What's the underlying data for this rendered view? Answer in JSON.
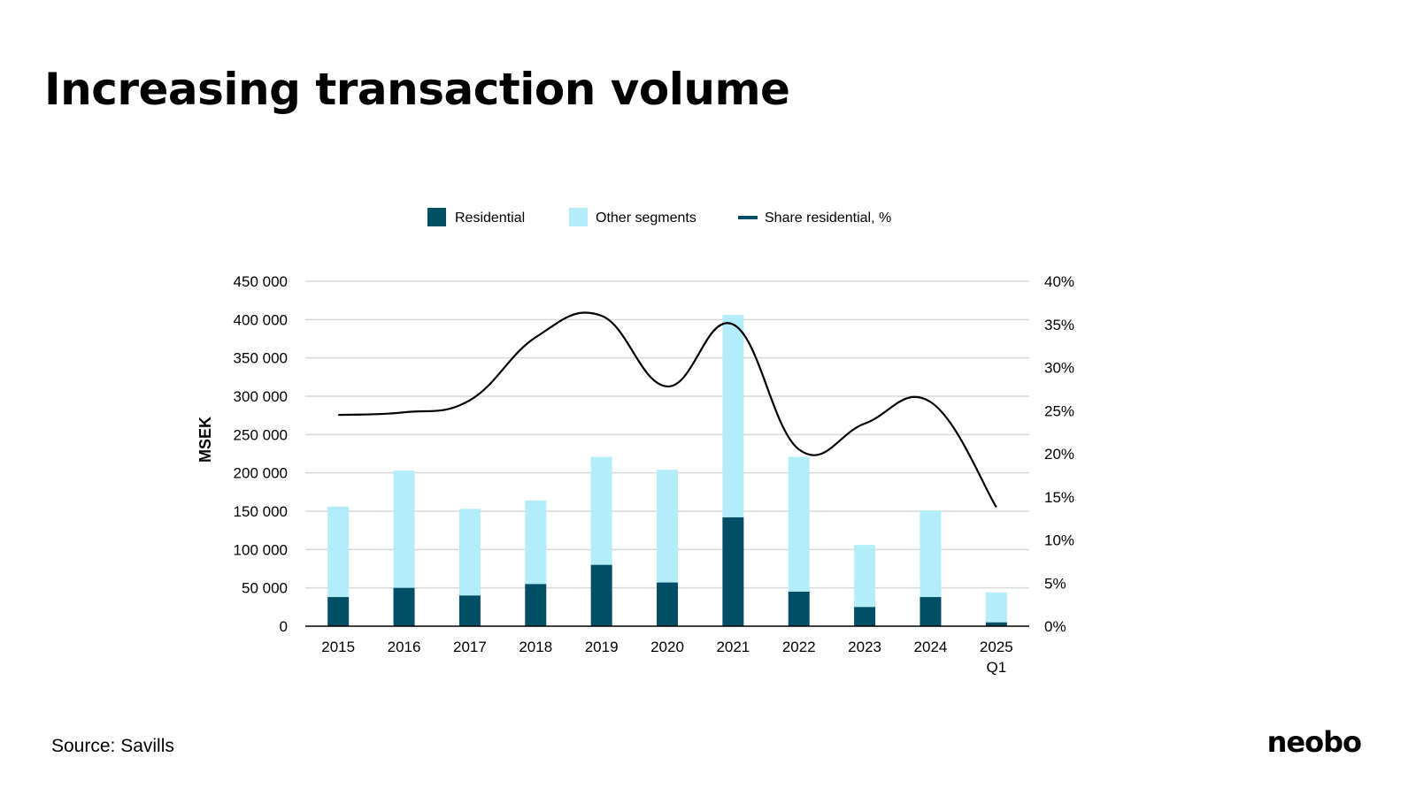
{
  "title": "Increasing transaction volume",
  "source": "Source: Savills",
  "logo": "neobo",
  "colors": {
    "residential": "#004F66",
    "other": "#B3EDFA",
    "share_line": "#000000",
    "legend_line": "#004F66",
    "grid": "#D9D9D9"
  },
  "chart_data": {
    "type": "bar",
    "stacked": true,
    "categories": [
      "2015",
      "2016",
      "2017",
      "2018",
      "2019",
      "2020",
      "2021",
      "2022",
      "2023",
      "2024",
      "2025 Q1"
    ],
    "series": [
      {
        "name": "Residential",
        "type": "bar",
        "axis": "left",
        "values": [
          38000,
          50000,
          40000,
          55000,
          80000,
          57000,
          142000,
          45000,
          25000,
          38000,
          5000
        ]
      },
      {
        "name": "Other segments",
        "type": "bar",
        "axis": "left",
        "values": [
          118000,
          153000,
          113000,
          109000,
          141000,
          147000,
          264000,
          176000,
          81000,
          113000,
          39000
        ]
      },
      {
        "name": "Share residential, %",
        "type": "line",
        "axis": "right",
        "values": [
          24.5,
          24.8,
          26.2,
          33.5,
          36.0,
          27.8,
          35.0,
          20.5,
          23.5,
          26.0,
          13.8
        ]
      }
    ],
    "ylabel": "MSEK",
    "ylim": [
      0,
      450000
    ],
    "yticks": [
      "0",
      "50 000",
      "100 000",
      "150 000",
      "200 000",
      "250 000",
      "300 000",
      "350 000",
      "400 000",
      "450 000"
    ],
    "y2lim": [
      0,
      40
    ],
    "y2ticks": [
      "0%",
      "5%",
      "10%",
      "15%",
      "20%",
      "25%",
      "30%",
      "35%",
      "40%"
    ],
    "grid": true,
    "legend_position": "top"
  }
}
